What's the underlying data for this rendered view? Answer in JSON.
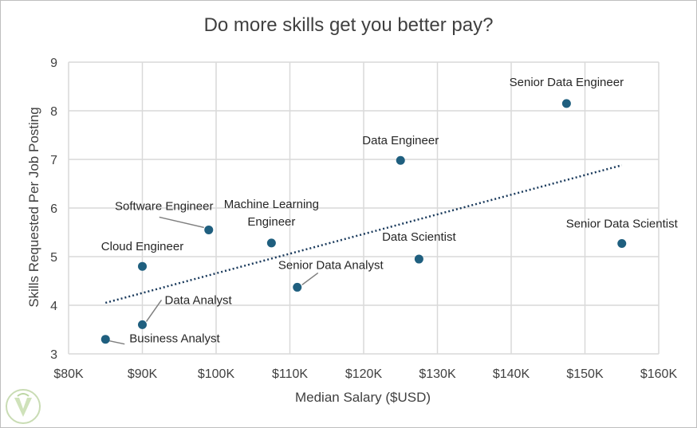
{
  "colors": {
    "marker": "#1f5f7f",
    "trendline": "#1a3a5c",
    "grid": "#d9d9d9",
    "leader": "#7f7f7f",
    "text": "#404040"
  },
  "logo_icon": "logo-watermark-icon",
  "chart_data": {
    "type": "scatter",
    "title": "Do more skills get you better pay?",
    "xlabel": "Median Salary ($USD)",
    "ylabel": "Skills Requested Per Job Posting",
    "xlim": [
      80000,
      160000
    ],
    "ylim": [
      3,
      9
    ],
    "xticks": [
      80000,
      90000,
      100000,
      110000,
      120000,
      130000,
      140000,
      150000,
      160000
    ],
    "xtick_labels": [
      "$80K",
      "$90K",
      "$100K",
      "$110K",
      "$120K",
      "$130K",
      "$140K",
      "$150K",
      "$160K"
    ],
    "yticks": [
      3,
      4,
      5,
      6,
      7,
      8,
      9
    ],
    "ytick_labels": [
      "3",
      "4",
      "5",
      "6",
      "7",
      "8",
      "9"
    ],
    "grid": true,
    "legend": false,
    "points": [
      {
        "label": "Business Analyst",
        "x": 85000,
        "y": 3.3
      },
      {
        "label": "Data Analyst",
        "x": 90000,
        "y": 3.6
      },
      {
        "label": "Cloud Engineer",
        "x": 90000,
        "y": 4.8
      },
      {
        "label": "Software Engineer",
        "x": 99000,
        "y": 5.55
      },
      {
        "label": "Machine Learning\nEngineer",
        "x": 107500,
        "y": 5.28
      },
      {
        "label": "Senior Data Analyst",
        "x": 111000,
        "y": 4.37
      },
      {
        "label": "Data Engineer",
        "x": 125000,
        "y": 6.98
      },
      {
        "label": "Data Scientist",
        "x": 127500,
        "y": 4.95
      },
      {
        "label": "Senior Data Engineer",
        "x": 147500,
        "y": 8.15
      },
      {
        "label": "Senior Data Scientist",
        "x": 155000,
        "y": 5.27
      }
    ],
    "trendline": {
      "type": "linear",
      "style": "dotted",
      "x_start": 85000,
      "y_start": 4.05,
      "x_end": 155000,
      "y_end": 6.88
    }
  }
}
